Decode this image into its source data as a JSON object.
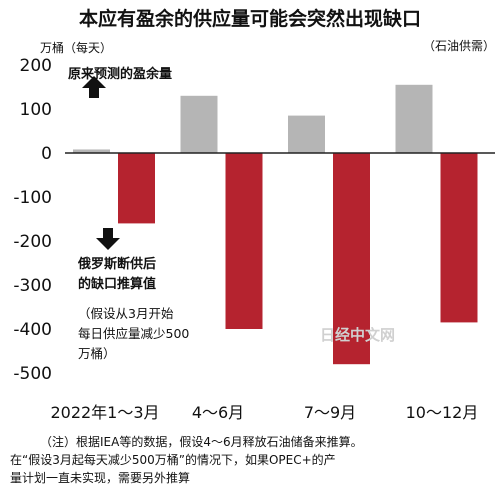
{
  "chart_data": {
    "type": "bar",
    "title": "本应有盈余的供应量可能会突然出现缺口",
    "unit_label": "万桶（每天）",
    "source_label": "（石油供需）",
    "categories": [
      "2022年1～3月",
      "4～6月",
      "7～9月",
      "10～12月"
    ],
    "series": [
      {
        "name": "原来预测的盈余量",
        "values": [
          8,
          130,
          85,
          155
        ],
        "color": "#b5b5b5"
      },
      {
        "name": "俄罗斯断供后的缺口推算值",
        "values": [
          -160,
          -400,
          -480,
          -385
        ],
        "color": "#b5232f"
      }
    ],
    "ylim": [
      -550,
      210
    ],
    "yticks": [
      200,
      100,
      0,
      -100,
      -200,
      -300,
      -400,
      -500
    ],
    "grid": false
  },
  "annotations": {
    "surplus_label": "原来预测的盈余量",
    "shortfall_line1": "俄罗斯断供后",
    "shortfall_line2": "的缺口推算值",
    "assume_line1": "（假设从3月开始",
    "assume_line2": "每日供应量减少500",
    "assume_line3": "万桶）"
  },
  "watermark": "日经中文网",
  "notes": {
    "line1": "（注）根据IEA等的数据，假设4～6月释放石油储备来推算。",
    "line2": "在“假设3月起每天减少500万桶”的情况下，如果OPEC+的产",
    "line3": "量计划一直未实现，需要另外推算"
  },
  "colors": {
    "surplus": "#b5b5b5",
    "shortfall": "#b5232f",
    "axis": "#222222"
  }
}
